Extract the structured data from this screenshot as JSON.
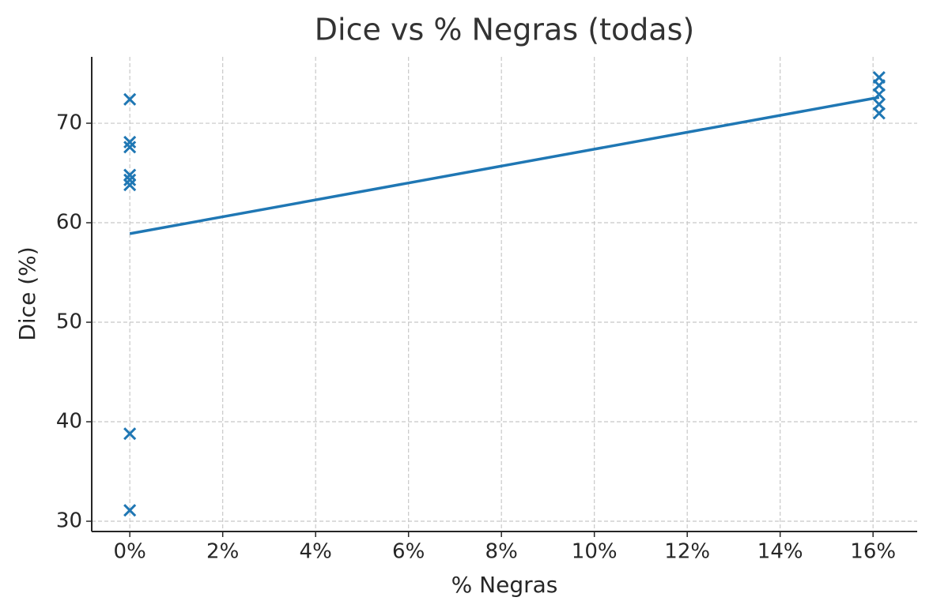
{
  "chart_data": {
    "type": "scatter",
    "title": "Dice vs % Negras (todas)",
    "x_label": "% Negras",
    "y_label": "Dice (%)",
    "xlim": [
      -0.82,
      16.95
    ],
    "ylim": [
      28.97,
      76.67
    ],
    "xticks": [
      {
        "value": 0,
        "label": "0%"
      },
      {
        "value": 2,
        "label": "2%"
      },
      {
        "value": 4,
        "label": "4%"
      },
      {
        "value": 6,
        "label": "6%"
      },
      {
        "value": 8,
        "label": "8%"
      },
      {
        "value": 10,
        "label": "10%"
      },
      {
        "value": 12,
        "label": "12%"
      },
      {
        "value": 14,
        "label": "14%"
      },
      {
        "value": 16,
        "label": "16%"
      }
    ],
    "yticks": [
      30,
      40,
      50,
      60,
      70
    ],
    "grid": true,
    "series": [
      {
        "type": "scatter",
        "marker": "x",
        "color": "#1f77b4",
        "x": [
          0,
          0,
          0,
          0,
          0,
          0,
          0,
          0,
          16.13,
          16.13,
          16.13,
          16.13,
          16.13
        ],
        "values": [
          72.4,
          68.1,
          67.6,
          64.8,
          64.3,
          63.8,
          38.8,
          31.1,
          74.6,
          73.8,
          72.9,
          71.9,
          71.0
        ]
      },
      {
        "type": "line",
        "color": "#1f77b4",
        "x": [
          0,
          16.13
        ],
        "values": [
          58.9,
          72.6
        ]
      }
    ]
  }
}
